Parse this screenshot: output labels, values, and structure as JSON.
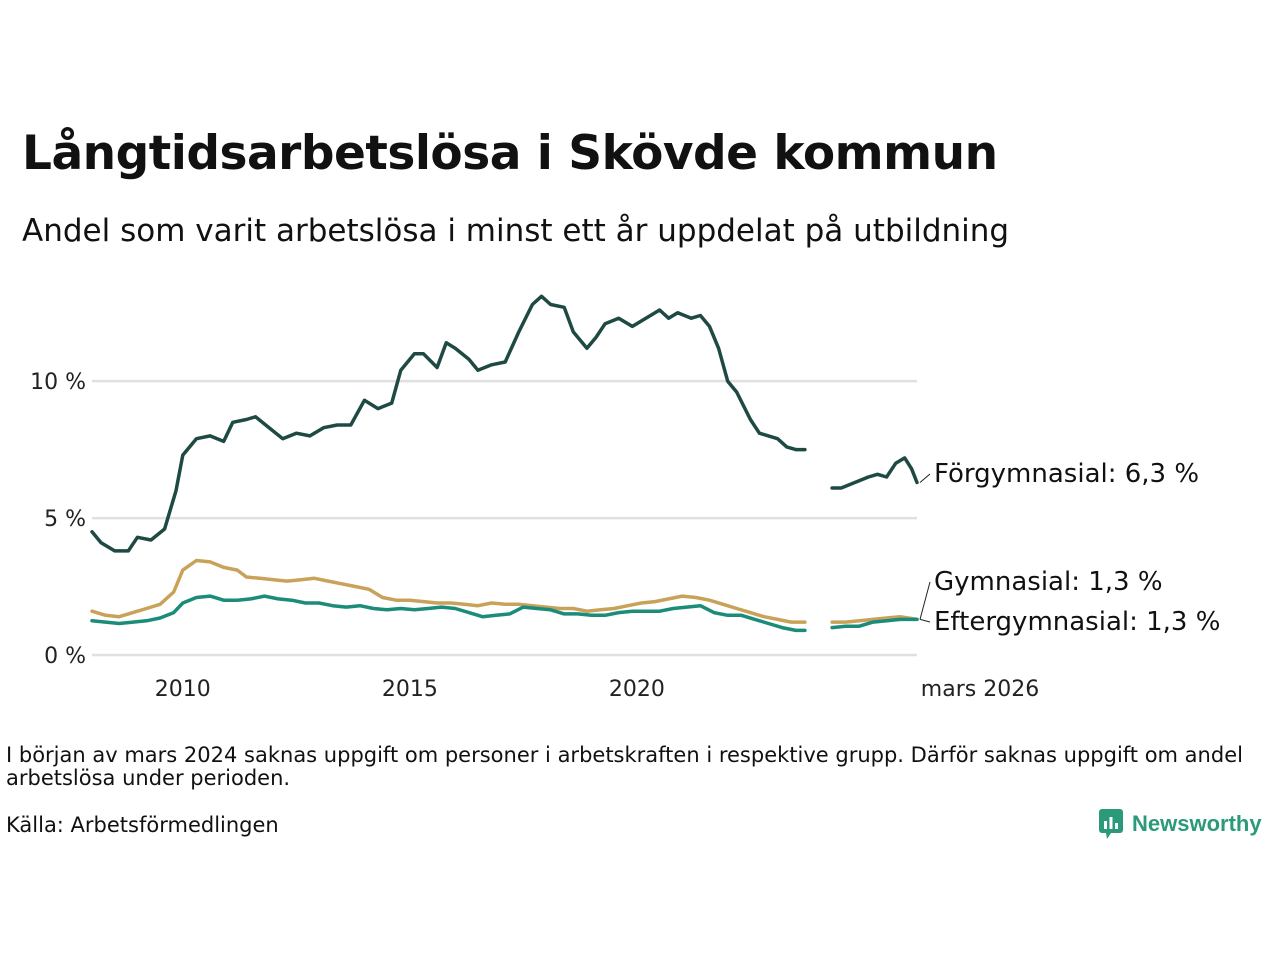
{
  "header": {
    "title": "Långtidsarbetslösa i Skövde kommun",
    "subtitle": "Andel som varit arbetslösa i minst ett år uppdelat på utbildning"
  },
  "footer": {
    "note": "I början av mars 2024 saknas uppgift om personer i arbetskraften i respektive grupp. Därför saknas uppgift om andel arbetslösa under perioden.",
    "source": "Källa: Arbetsförmedlingen",
    "brand": "Newsworthy"
  },
  "chart_data": {
    "type": "line",
    "title": "Långtidsarbetslösa i Skövde kommun",
    "subtitle": "Andel som varit arbetslösa i minst ett år uppdelat på utbildning",
    "x_unit": "year (decimal)",
    "xlim": [
      2008.0,
      2026.17
    ],
    "ylim": [
      0,
      13.5
    ],
    "y_ticks": [
      {
        "value": 0,
        "label": "0 %"
      },
      {
        "value": 5,
        "label": "5 %"
      },
      {
        "value": 10,
        "label": "10 %"
      }
    ],
    "x_ticks": [
      {
        "value": 2010,
        "label": "2010"
      },
      {
        "value": 2015,
        "label": "2015"
      },
      {
        "value": 2020,
        "label": "2020"
      },
      {
        "value": 2026.17,
        "label": "mars 2026"
      }
    ],
    "grid": "horizontal",
    "gap": [
      2023.75,
      2024.25
    ],
    "series": [
      {
        "name": "Förgymnasial",
        "end_label": "Förgymnasial: 6,3 %",
        "color": "#1f4a44",
        "points": [
          [
            2008.0,
            4.5
          ],
          [
            2008.2,
            4.1
          ],
          [
            2008.5,
            3.8
          ],
          [
            2008.8,
            3.8
          ],
          [
            2009.0,
            4.3
          ],
          [
            2009.3,
            4.2
          ],
          [
            2009.6,
            4.6
          ],
          [
            2009.85,
            6.0
          ],
          [
            2010.0,
            7.3
          ],
          [
            2010.3,
            7.9
          ],
          [
            2010.6,
            8.0
          ],
          [
            2010.9,
            7.8
          ],
          [
            2011.1,
            8.5
          ],
          [
            2011.4,
            8.6
          ],
          [
            2011.6,
            8.7
          ],
          [
            2011.9,
            8.3
          ],
          [
            2012.2,
            7.9
          ],
          [
            2012.5,
            8.1
          ],
          [
            2012.8,
            8.0
          ],
          [
            2013.1,
            8.3
          ],
          [
            2013.4,
            8.4
          ],
          [
            2013.7,
            8.4
          ],
          [
            2014.0,
            9.3
          ],
          [
            2014.3,
            9.0
          ],
          [
            2014.6,
            9.2
          ],
          [
            2014.8,
            10.4
          ],
          [
            2015.1,
            11.0
          ],
          [
            2015.3,
            11.0
          ],
          [
            2015.6,
            10.5
          ],
          [
            2015.8,
            11.4
          ],
          [
            2016.0,
            11.2
          ],
          [
            2016.3,
            10.8
          ],
          [
            2016.5,
            10.4
          ],
          [
            2016.8,
            10.6
          ],
          [
            2017.1,
            10.7
          ],
          [
            2017.4,
            11.8
          ],
          [
            2017.7,
            12.8
          ],
          [
            2017.9,
            13.1
          ],
          [
            2018.1,
            12.8
          ],
          [
            2018.4,
            12.7
          ],
          [
            2018.6,
            11.8
          ],
          [
            2018.9,
            11.2
          ],
          [
            2019.1,
            11.6
          ],
          [
            2019.3,
            12.1
          ],
          [
            2019.6,
            12.3
          ],
          [
            2019.9,
            12.0
          ],
          [
            2020.2,
            12.3
          ],
          [
            2020.5,
            12.6
          ],
          [
            2020.7,
            12.3
          ],
          [
            2020.9,
            12.5
          ],
          [
            2021.2,
            12.3
          ],
          [
            2021.4,
            12.4
          ],
          [
            2021.6,
            12.0
          ],
          [
            2021.8,
            11.2
          ],
          [
            2022.0,
            10.0
          ],
          [
            2022.2,
            9.6
          ],
          [
            2022.5,
            8.6
          ],
          [
            2022.7,
            8.1
          ],
          [
            2022.9,
            8.0
          ],
          [
            2023.1,
            7.9
          ],
          [
            2023.3,
            7.6
          ],
          [
            2023.5,
            7.5
          ],
          [
            2023.7,
            7.5
          ],
          null,
          [
            2024.3,
            6.1
          ],
          [
            2024.5,
            6.1
          ],
          [
            2024.8,
            6.3
          ],
          [
            2025.1,
            6.5
          ],
          [
            2025.3,
            6.6
          ],
          [
            2025.5,
            6.5
          ],
          [
            2025.7,
            7.0
          ],
          [
            2025.9,
            7.2
          ],
          [
            2026.05,
            6.8
          ],
          [
            2026.17,
            6.3
          ]
        ]
      },
      {
        "name": "Gymnasial",
        "end_label": "Gymnasial: 1,3 %",
        "color": "#c9a25a",
        "points": [
          [
            2008.0,
            1.6
          ],
          [
            2008.3,
            1.45
          ],
          [
            2008.6,
            1.4
          ],
          [
            2008.9,
            1.55
          ],
          [
            2009.2,
            1.7
          ],
          [
            2009.5,
            1.85
          ],
          [
            2009.8,
            2.3
          ],
          [
            2010.0,
            3.1
          ],
          [
            2010.3,
            3.45
          ],
          [
            2010.6,
            3.4
          ],
          [
            2010.9,
            3.2
          ],
          [
            2011.2,
            3.1
          ],
          [
            2011.4,
            2.85
          ],
          [
            2011.7,
            2.8
          ],
          [
            2012.0,
            2.75
          ],
          [
            2012.3,
            2.7
          ],
          [
            2012.6,
            2.75
          ],
          [
            2012.9,
            2.8
          ],
          [
            2013.2,
            2.7
          ],
          [
            2013.5,
            2.6
          ],
          [
            2013.8,
            2.5
          ],
          [
            2014.1,
            2.4
          ],
          [
            2014.4,
            2.1
          ],
          [
            2014.7,
            2.0
          ],
          [
            2015.0,
            2.0
          ],
          [
            2015.3,
            1.95
          ],
          [
            2015.6,
            1.9
          ],
          [
            2015.9,
            1.9
          ],
          [
            2016.2,
            1.85
          ],
          [
            2016.5,
            1.8
          ],
          [
            2016.8,
            1.9
          ],
          [
            2017.1,
            1.85
          ],
          [
            2017.4,
            1.85
          ],
          [
            2017.7,
            1.8
          ],
          [
            2018.0,
            1.75
          ],
          [
            2018.3,
            1.7
          ],
          [
            2018.6,
            1.7
          ],
          [
            2018.9,
            1.6
          ],
          [
            2019.2,
            1.65
          ],
          [
            2019.5,
            1.7
          ],
          [
            2019.8,
            1.8
          ],
          [
            2020.1,
            1.9
          ],
          [
            2020.4,
            1.95
          ],
          [
            2020.7,
            2.05
          ],
          [
            2021.0,
            2.15
          ],
          [
            2021.3,
            2.1
          ],
          [
            2021.6,
            2.0
          ],
          [
            2021.9,
            1.85
          ],
          [
            2022.2,
            1.7
          ],
          [
            2022.5,
            1.55
          ],
          [
            2022.8,
            1.4
          ],
          [
            2023.1,
            1.3
          ],
          [
            2023.4,
            1.2
          ],
          [
            2023.7,
            1.2
          ],
          null,
          [
            2024.3,
            1.2
          ],
          [
            2024.6,
            1.2
          ],
          [
            2024.9,
            1.25
          ],
          [
            2025.2,
            1.3
          ],
          [
            2025.5,
            1.35
          ],
          [
            2025.8,
            1.4
          ],
          [
            2026.17,
            1.3
          ]
        ]
      },
      {
        "name": "Eftergymnasial",
        "end_label": "Eftergymnasial: 1,3 %",
        "color": "#1b8c7a",
        "points": [
          [
            2008.0,
            1.25
          ],
          [
            2008.3,
            1.2
          ],
          [
            2008.6,
            1.15
          ],
          [
            2008.9,
            1.2
          ],
          [
            2009.2,
            1.25
          ],
          [
            2009.5,
            1.35
          ],
          [
            2009.8,
            1.55
          ],
          [
            2010.0,
            1.9
          ],
          [
            2010.3,
            2.1
          ],
          [
            2010.6,
            2.15
          ],
          [
            2010.9,
            2.0
          ],
          [
            2011.2,
            2.0
          ],
          [
            2011.5,
            2.05
          ],
          [
            2011.8,
            2.15
          ],
          [
            2012.1,
            2.05
          ],
          [
            2012.4,
            2.0
          ],
          [
            2012.7,
            1.9
          ],
          [
            2013.0,
            1.9
          ],
          [
            2013.3,
            1.8
          ],
          [
            2013.6,
            1.75
          ],
          [
            2013.9,
            1.8
          ],
          [
            2014.2,
            1.7
          ],
          [
            2014.5,
            1.65
          ],
          [
            2014.8,
            1.7
          ],
          [
            2015.1,
            1.65
          ],
          [
            2015.4,
            1.7
          ],
          [
            2015.7,
            1.75
          ],
          [
            2016.0,
            1.7
          ],
          [
            2016.3,
            1.55
          ],
          [
            2016.6,
            1.4
          ],
          [
            2016.9,
            1.45
          ],
          [
            2017.2,
            1.5
          ],
          [
            2017.5,
            1.75
          ],
          [
            2017.8,
            1.7
          ],
          [
            2018.1,
            1.65
          ],
          [
            2018.4,
            1.5
          ],
          [
            2018.7,
            1.5
          ],
          [
            2019.0,
            1.45
          ],
          [
            2019.3,
            1.45
          ],
          [
            2019.6,
            1.55
          ],
          [
            2019.9,
            1.6
          ],
          [
            2020.2,
            1.6
          ],
          [
            2020.5,
            1.6
          ],
          [
            2020.8,
            1.7
          ],
          [
            2021.1,
            1.75
          ],
          [
            2021.4,
            1.8
          ],
          [
            2021.7,
            1.55
          ],
          [
            2022.0,
            1.45
          ],
          [
            2022.3,
            1.45
          ],
          [
            2022.6,
            1.3
          ],
          [
            2022.9,
            1.15
          ],
          [
            2023.2,
            1.0
          ],
          [
            2023.5,
            0.9
          ],
          [
            2023.7,
            0.9
          ],
          null,
          [
            2024.3,
            1.0
          ],
          [
            2024.6,
            1.05
          ],
          [
            2024.9,
            1.05
          ],
          [
            2025.2,
            1.2
          ],
          [
            2025.5,
            1.25
          ],
          [
            2025.8,
            1.3
          ],
          [
            2026.17,
            1.3
          ]
        ]
      }
    ]
  }
}
